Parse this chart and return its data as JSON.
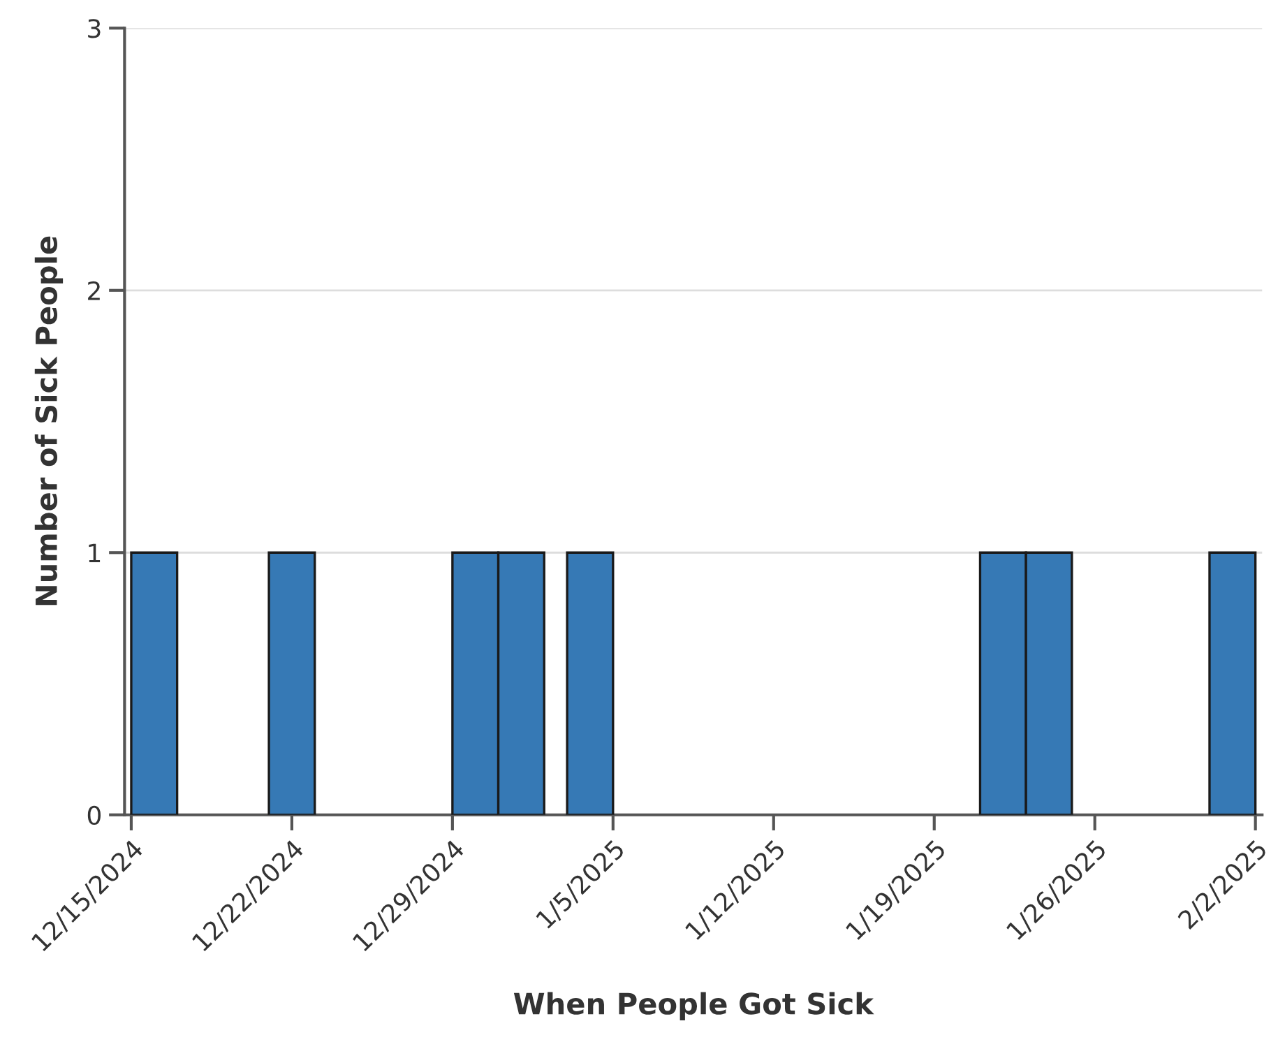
{
  "chart_data": {
    "type": "bar",
    "xlabel": "When People Got Sick",
    "ylabel": "Number of Sick People",
    "x": [
      "2024-12-16",
      "2024-12-22",
      "2024-12-30",
      "2025-01-01",
      "2025-01-04",
      "2025-01-22",
      "2025-01-24",
      "2025-02-01"
    ],
    "values": [
      1,
      1,
      1,
      1,
      1,
      1,
      1,
      1
    ],
    "color": "#3679b5",
    "xlim": [
      "2024-12-14T17:00",
      "2025-02-02T07:00"
    ],
    "xticks": [
      {
        "value": "2024-12-15",
        "label": "12/15/2024"
      },
      {
        "value": "2024-12-22",
        "label": "12/22/2024"
      },
      {
        "value": "2024-12-29",
        "label": "12/29/2024"
      },
      {
        "value": "2025-01-05",
        "label": "1/5/2025"
      },
      {
        "value": "2025-01-12",
        "label": "1/12/2025"
      },
      {
        "value": "2025-01-19",
        "label": "1/19/2025"
      },
      {
        "value": "2025-01-26",
        "label": "1/26/2025"
      },
      {
        "value": "2025-02-02",
        "label": "2/2/2025"
      }
    ],
    "ylim": [
      0,
      3
    ],
    "yticks": [
      0,
      1,
      2,
      3
    ],
    "grid": "y"
  }
}
